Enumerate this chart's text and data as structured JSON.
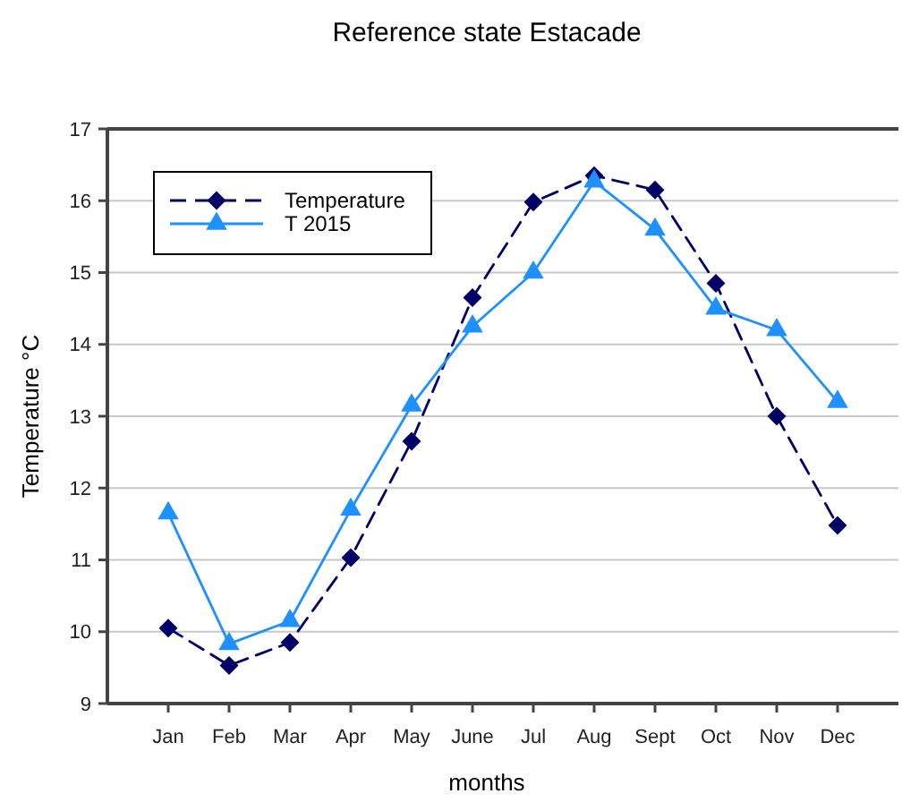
{
  "chart_data": {
    "type": "line",
    "title": "Reference state Estacade",
    "xlabel": "months",
    "ylabel": "Temperature °C",
    "categories": [
      "Jan",
      "Feb",
      "Mar",
      "Apr",
      "May",
      "June",
      "Jul",
      "Aug",
      "Sept",
      "Oct",
      "Nov",
      "Dec"
    ],
    "series": [
      {
        "name": "Temperature",
        "color": "#000066",
        "marker": "diamond",
        "line_style": "dashed",
        "values": [
          10.05,
          9.53,
          9.85,
          11.03,
          12.65,
          14.65,
          15.98,
          16.35,
          16.15,
          14.85,
          13.0,
          11.48
        ]
      },
      {
        "name": "T 2015",
        "color": "#1e90ff",
        "marker": "triangle",
        "line_style": "solid",
        "values": [
          11.65,
          9.83,
          10.15,
          11.7,
          13.15,
          14.25,
          15.0,
          16.27,
          15.6,
          14.5,
          14.2,
          13.2
        ]
      }
    ],
    "ylim": [
      9,
      17
    ],
    "yticks": [
      9,
      10,
      11,
      12,
      13,
      14,
      15,
      16,
      17
    ],
    "grid": "y",
    "legend": "top left"
  }
}
